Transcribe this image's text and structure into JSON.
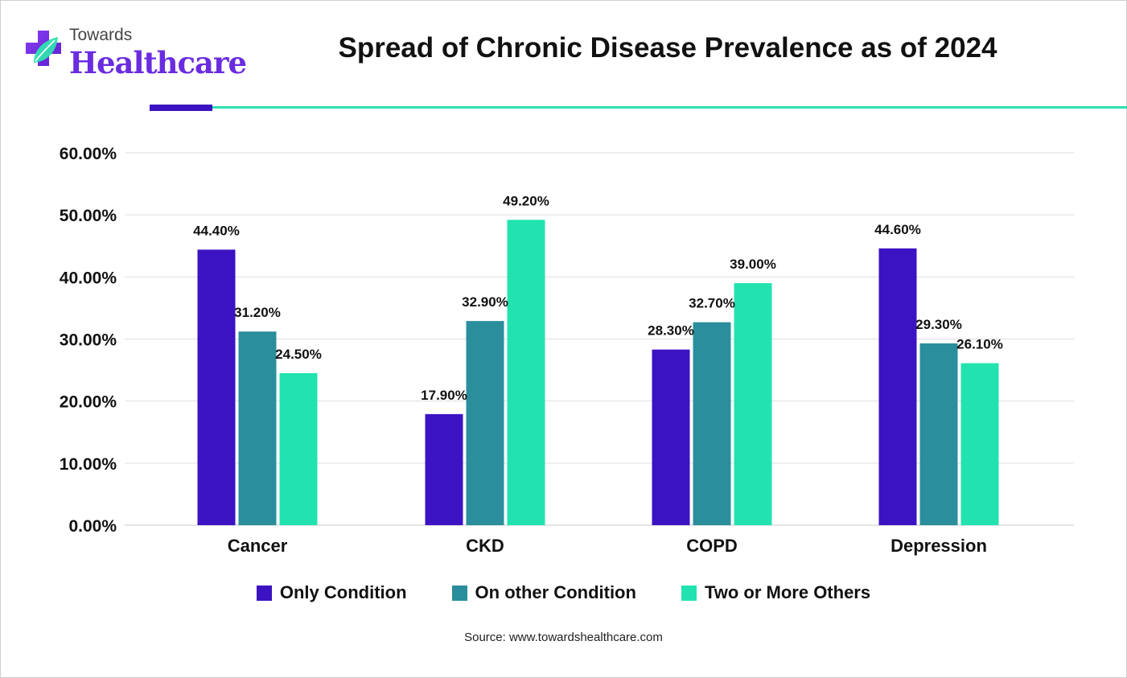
{
  "brand": {
    "name_small": "Towards",
    "name_large": "Healthcare",
    "primary_color": "#6a2ce0",
    "accent_color": "#2ee0b0",
    "logo_icon": "medical-cross-leaf-icon"
  },
  "chart_data": {
    "type": "bar",
    "title": "Spread of Chronic Disease Prevalence as of 2024",
    "xlabel": "",
    "ylabel": "",
    "categories": [
      "Cancer",
      "CKD",
      "COPD",
      "Depression"
    ],
    "series": [
      {
        "name": "Only Condition",
        "color": "#3b13c2",
        "values": [
          44.4,
          17.9,
          28.3,
          44.6
        ],
        "labels": [
          "44.40%",
          "17.90%",
          "28.30%",
          "44.60%"
        ]
      },
      {
        "name": "On other Condition",
        "color": "#2a8e9c",
        "values": [
          31.2,
          32.9,
          32.7,
          29.3
        ],
        "labels": [
          "31.20%",
          "32.90%",
          "32.70%",
          "29.30%"
        ]
      },
      {
        "name": "Two or More Others",
        "color": "#22e3b0",
        "values": [
          24.5,
          49.2,
          39.0,
          26.1
        ],
        "labels": [
          "24.50%",
          "49.20%",
          "39.00%",
          "26.10%"
        ]
      }
    ],
    "ylim": [
      0,
      60
    ],
    "yticks": [
      0,
      10,
      20,
      30,
      40,
      50,
      60
    ],
    "ytick_labels": [
      "0.00%",
      "10.00%",
      "20.00%",
      "30.00%",
      "40.00%",
      "50.00%",
      "60.00%"
    ],
    "grid": true,
    "legend_position": "bottom"
  },
  "source": "Source: www.towardshealthcare.com"
}
